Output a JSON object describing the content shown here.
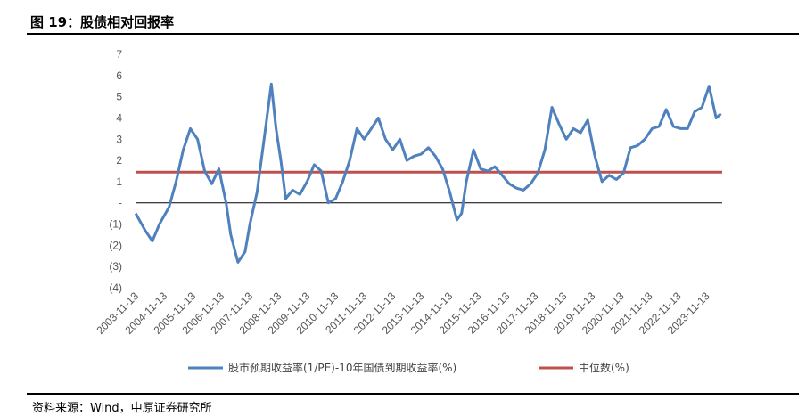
{
  "header": {
    "title": "图 19：股债相对回报率"
  },
  "footer": {
    "source": "资料来源：Wind，中原证券研究所"
  },
  "chart_data": {
    "type": "line",
    "title": "",
    "xlabel": "",
    "ylabel": "",
    "ylim": [
      -4,
      7
    ],
    "yticks": [
      7,
      6,
      5,
      4,
      3,
      2,
      1,
      0,
      -1,
      -2,
      -3,
      -4
    ],
    "ytick_labels": [
      "7",
      "6",
      "5",
      "4",
      "3",
      "2",
      "1",
      "-",
      "(1)",
      "(2)",
      "(3)",
      "(4)"
    ],
    "x_tick_labels": [
      "2003-11-13",
      "2004-11-13",
      "2005-11-13",
      "2006-11-13",
      "2007-11-13",
      "2008-11-13",
      "2009-11-13",
      "2010-11-13",
      "2011-11-13",
      "2012-11-13",
      "2013-11-13",
      "2014-11-13",
      "2015-11-13",
      "2016-11-13",
      "2017-11-13",
      "2018-11-13",
      "2019-11-13",
      "2020-11-13",
      "2021-11-13",
      "2022-11-13",
      "2023-11-13"
    ],
    "grid": false,
    "legend": "bottom",
    "series": [
      {
        "name": "股市预期收益率(1/PE)-10年国债到期收益率(%)",
        "color": "#4e81bd",
        "x": [
          "2003-11",
          "2004-03",
          "2004-06",
          "2004-09",
          "2005-01",
          "2005-04",
          "2005-07",
          "2005-10",
          "2006-01",
          "2006-04",
          "2006-07",
          "2006-10",
          "2007-01",
          "2007-03",
          "2007-06",
          "2007-09",
          "2007-11",
          "2008-02",
          "2008-05",
          "2008-08",
          "2008-10",
          "2008-12",
          "2009-02",
          "2009-05",
          "2009-08",
          "2009-11",
          "2010-02",
          "2010-05",
          "2010-08",
          "2010-11",
          "2011-02",
          "2011-05",
          "2011-08",
          "2011-11",
          "2012-02",
          "2012-05",
          "2012-08",
          "2012-11",
          "2013-02",
          "2013-05",
          "2013-08",
          "2013-11",
          "2014-02",
          "2014-05",
          "2014-08",
          "2014-11",
          "2015-02",
          "2015-04",
          "2015-06",
          "2015-09",
          "2015-12",
          "2016-03",
          "2016-06",
          "2016-09",
          "2016-12",
          "2017-03",
          "2017-06",
          "2017-09",
          "2017-12",
          "2018-03",
          "2018-06",
          "2018-09",
          "2018-12",
          "2019-03",
          "2019-06",
          "2019-09",
          "2019-12",
          "2020-03",
          "2020-06",
          "2020-09",
          "2020-12",
          "2021-03",
          "2021-06",
          "2021-09",
          "2021-12",
          "2022-03",
          "2022-06",
          "2022-09",
          "2022-12",
          "2023-03",
          "2023-06",
          "2023-09",
          "2023-12",
          "2024-03",
          "2024-05"
        ],
        "values": [
          -0.5,
          -1.3,
          -1.8,
          -1.0,
          -0.2,
          1.0,
          2.5,
          3.5,
          3.0,
          1.5,
          0.9,
          1.6,
          0.0,
          -1.5,
          -2.8,
          -2.3,
          -1.0,
          0.5,
          3.0,
          5.6,
          3.5,
          2.0,
          0.2,
          0.6,
          0.4,
          1.0,
          1.8,
          1.5,
          0.0,
          0.2,
          1.0,
          2.0,
          3.5,
          3.0,
          3.5,
          4.0,
          3.0,
          2.5,
          3.0,
          2.0,
          2.2,
          2.3,
          2.6,
          2.2,
          1.6,
          0.5,
          -0.8,
          -0.5,
          1.0,
          2.5,
          1.6,
          1.5,
          1.7,
          1.3,
          0.9,
          0.7,
          0.6,
          0.9,
          1.4,
          2.5,
          4.5,
          3.7,
          3.0,
          3.5,
          3.3,
          3.9,
          2.2,
          1.0,
          1.3,
          1.1,
          1.4,
          2.6,
          2.7,
          3.0,
          3.5,
          3.6,
          4.4,
          3.6,
          3.5,
          3.5,
          4.3,
          4.5,
          5.5,
          4.0,
          4.2
        ]
      },
      {
        "name": "中位数(%)",
        "color": "#c0504d",
        "values": [
          1.45
        ]
      }
    ]
  }
}
